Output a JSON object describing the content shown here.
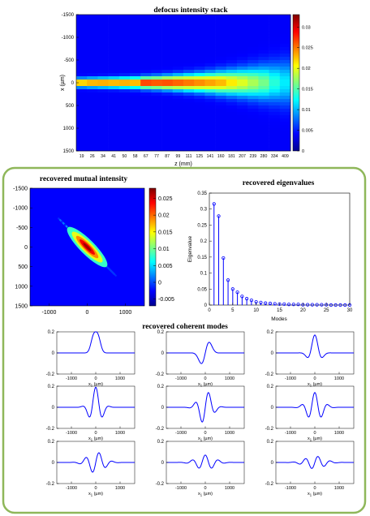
{
  "chart_data": [
    {
      "id": "stack",
      "type": "heatmap",
      "title": "defocus intensity stack",
      "xlabel": "z (mm)",
      "ylabel": "x (µm)",
      "x_ticks": [
        "19",
        "26",
        "34",
        "41",
        "50",
        "58",
        "67",
        "77",
        "87",
        "99",
        "111",
        "125",
        "141",
        "160",
        "181",
        "207",
        "239",
        "280",
        "334",
        "409"
      ],
      "y_ticks": [
        -1500,
        -1000,
        -500,
        0,
        500,
        1000,
        1500
      ],
      "colorbar_ticks": [
        0,
        0.005,
        0.01,
        0.015,
        0.02,
        0.025,
        0.03
      ],
      "colorbar_range": [
        0,
        0.033
      ],
      "peak_values": [
        0.029,
        0.03,
        0.03,
        0.029,
        0.029,
        0.028,
        0.028,
        0.027,
        0.027,
        0.026,
        0.025,
        0.024,
        0.023,
        0.022,
        0.02,
        0.018,
        0.016,
        0.014,
        0.011,
        0.009
      ],
      "beam_halfwidth_um": [
        60,
        63,
        66,
        70,
        74,
        79,
        85,
        92,
        100,
        110,
        121,
        133,
        147,
        163,
        181,
        201,
        224,
        250,
        280,
        315
      ]
    },
    {
      "id": "mutual",
      "type": "heatmap",
      "title": "recovered mutual intensity",
      "x_ticks": [
        -1000,
        0,
        1000
      ],
      "y_ticks": [
        -1500,
        -1000,
        -500,
        0,
        500,
        1000,
        1500
      ],
      "colorbar_ticks": [
        -0.005,
        0,
        0.005,
        0.01,
        0.015,
        0.02,
        0.025
      ],
      "colorbar_range": [
        -0.007,
        0.028
      ],
      "xlim": [
        -1500,
        1500
      ],
      "ylim": [
        -1500,
        1500
      ]
    },
    {
      "id": "eigen",
      "type": "scatter",
      "style": "stem",
      "title": "recovered eigenvalues",
      "xlabel": "Modes",
      "ylabel": "Eigenvalue",
      "x": [
        1,
        2,
        3,
        4,
        5,
        6,
        7,
        8,
        9,
        10,
        11,
        12,
        13,
        14,
        15,
        16,
        17,
        18,
        19,
        20,
        21,
        22,
        23,
        24,
        25,
        26,
        27,
        28,
        29,
        30
      ],
      "values": [
        0.316,
        0.278,
        0.147,
        0.078,
        0.05,
        0.04,
        0.027,
        0.02,
        0.015,
        0.01,
        0.008,
        0.006,
        0.005,
        0.004,
        0.003,
        0.003,
        0.002,
        0.002,
        0.002,
        0.001,
        0.001,
        0.001,
        0.001,
        0.001,
        0.001,
        0.0,
        0.0,
        0.0,
        0.0,
        0.0
      ],
      "xlim": [
        0,
        30
      ],
      "ylim": [
        0,
        0.35
      ],
      "x_ticks": [
        0,
        5,
        10,
        15,
        20,
        25,
        30
      ],
      "y_ticks": [
        0,
        0.05,
        0.1,
        0.15,
        0.2,
        0.25,
        0.3,
        0.35
      ],
      "grid": false
    },
    {
      "id": "modes",
      "type": "line",
      "title": "recovered coherent modes",
      "xlabel": "x",
      "xlabel_sub": "1",
      "xlabel_unit": " (µm)",
      "x_ticks": [
        -1000,
        0,
        1000
      ],
      "y_ticks": [
        -0.2,
        0,
        0.2
      ],
      "xlim": [
        -1600,
        1600
      ],
      "ylim": [
        -0.2,
        0.2
      ],
      "modes": [
        {
          "order": 0,
          "amp": 0.2,
          "width": 170,
          "freq": 0,
          "type": "bump"
        },
        {
          "order": 1,
          "amp": 0.18,
          "width": 190,
          "freq": 1.0,
          "type": "odd"
        },
        {
          "order": 2,
          "amp": 0.17,
          "width": 200,
          "freq": 1.5,
          "type": "even"
        },
        {
          "order": 3,
          "amp": 0.19,
          "width": 230,
          "freq": 2.2,
          "type": "even"
        },
        {
          "order": 4,
          "amp": 0.16,
          "width": 260,
          "freq": 2.6,
          "type": "odd"
        },
        {
          "order": 5,
          "amp": 0.14,
          "width": 290,
          "freq": 3.0,
          "type": "even"
        },
        {
          "order": 6,
          "amp": 0.1,
          "width": 330,
          "freq": 3.4,
          "type": "odd"
        },
        {
          "order": 7,
          "amp": 0.07,
          "width": 360,
          "freq": 3.8,
          "type": "even"
        },
        {
          "order": 8,
          "amp": 0.06,
          "width": 380,
          "freq": 4.2,
          "type": "odd"
        }
      ]
    }
  ],
  "colors": {
    "panel_border": "#8fb75a",
    "line": "#0000ff",
    "axis": "#000000"
  }
}
